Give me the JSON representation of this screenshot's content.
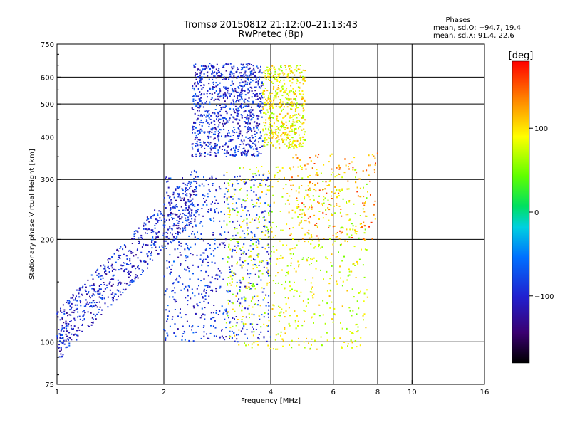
{
  "header": {
    "title_line1": "Tromsø 20150812 21:12:00–21:13:43",
    "title_line2": "RwPretec (8p)"
  },
  "stats": {
    "heading": "Phases",
    "line_o": "mean, sd,O: −94.7, 19.4",
    "line_x": "mean, sd,X:  91.4, 22.6"
  },
  "colorbar": {
    "label": "[deg]",
    "range": [
      -180,
      180
    ],
    "ticks": [
      {
        "value": 100,
        "label": "100"
      },
      {
        "value": 0,
        "label": "0"
      },
      {
        "value": -100,
        "label": "−100"
      }
    ]
  },
  "chart_data": {
    "type": "scatter",
    "xlabel": "Frequency [MHz]",
    "ylabel": "Stationary phase Virtual Height [km]",
    "xscale": "log",
    "yscale": "log",
    "xlim": [
      1,
      16
    ],
    "ylim": [
      75,
      750
    ],
    "grid": true,
    "xticks": [
      1,
      2,
      4,
      6,
      8,
      10,
      16
    ],
    "yticks": [
      75,
      100,
      200,
      300,
      400,
      500,
      600,
      750
    ],
    "x_gridlines": [
      2,
      4,
      6,
      8,
      10
    ],
    "y_gridlines": [
      100,
      200,
      300,
      400,
      500,
      600
    ],
    "color_variable": "phase [deg]",
    "clusters": [
      {
        "freq_range": [
          2.4,
          3.8
        ],
        "height_range": [
          350,
          660
        ],
        "phase_mean": -95
      },
      {
        "freq_range": [
          3.8,
          5.0
        ],
        "height_range": [
          370,
          650
        ],
        "phase_mean": 90
      },
      {
        "freq_range": [
          1.0,
          2.5
        ],
        "height_range": [
          95,
          300
        ],
        "phase_mean": -100
      },
      {
        "freq_range": [
          2.0,
          4.0
        ],
        "height_range": [
          100,
          310
        ],
        "phase_mean": -90
      },
      {
        "freq_range": [
          3.0,
          7.5
        ],
        "height_range": [
          95,
          330
        ],
        "phase_mean": 80
      },
      {
        "freq_range": [
          4.5,
          8.0
        ],
        "height_range": [
          200,
          360
        ],
        "phase_mean": 130
      }
    ]
  }
}
